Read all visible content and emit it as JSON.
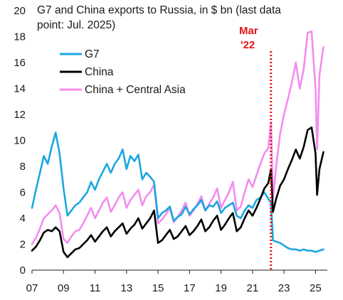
{
  "chart_data": {
    "type": "line",
    "title_lines": [
      "G7 and China exports to Russia, in $ bn (last data",
      "point: Jul. 2025)"
    ],
    "xlabel": "",
    "ylabel": "",
    "x_ticks": [
      "07",
      "09",
      "11",
      "13",
      "15",
      "17",
      "19",
      "21",
      "23",
      "25"
    ],
    "y_ticks": [
      "0",
      "2",
      "4",
      "6",
      "8",
      "10",
      "12",
      "14",
      "16",
      "18",
      "20"
    ],
    "xlim": [
      2007.0,
      2025.75
    ],
    "ylim": [
      0,
      20
    ],
    "grid": false,
    "legend_position": "upper-left",
    "annotation": {
      "lines": [
        "Mar",
        "'22"
      ],
      "x": 2022.17,
      "color": "#e3151a",
      "style": "dotted vertical line"
    },
    "series": [
      {
        "name": "G7",
        "color": "#1aa7e0",
        "points": [
          [
            2007.0,
            4.8
          ],
          [
            2007.25,
            6.2
          ],
          [
            2007.5,
            7.5
          ],
          [
            2007.75,
            8.8
          ],
          [
            2008.0,
            8.2
          ],
          [
            2008.25,
            9.5
          ],
          [
            2008.5,
            10.6
          ],
          [
            2008.75,
            9.0
          ],
          [
            2009.0,
            6.3
          ],
          [
            2009.25,
            4.2
          ],
          [
            2009.5,
            4.6
          ],
          [
            2009.75,
            5.0
          ],
          [
            2010.0,
            5.2
          ],
          [
            2010.25,
            5.6
          ],
          [
            2010.5,
            6.0
          ],
          [
            2010.75,
            6.8
          ],
          [
            2011.0,
            6.2
          ],
          [
            2011.25,
            7.0
          ],
          [
            2011.5,
            7.6
          ],
          [
            2011.75,
            8.2
          ],
          [
            2012.0,
            7.5
          ],
          [
            2012.25,
            8.2
          ],
          [
            2012.5,
            8.6
          ],
          [
            2012.75,
            9.3
          ],
          [
            2013.0,
            7.8
          ],
          [
            2013.25,
            8.8
          ],
          [
            2013.5,
            8.4
          ],
          [
            2013.75,
            8.9
          ],
          [
            2014.0,
            7.0
          ],
          [
            2014.25,
            7.5
          ],
          [
            2014.5,
            7.2
          ],
          [
            2014.75,
            6.8
          ],
          [
            2015.0,
            4.0
          ],
          [
            2015.25,
            4.4
          ],
          [
            2015.5,
            4.6
          ],
          [
            2015.75,
            4.9
          ],
          [
            2016.0,
            3.8
          ],
          [
            2016.25,
            4.1
          ],
          [
            2016.5,
            4.3
          ],
          [
            2016.75,
            4.9
          ],
          [
            2017.0,
            4.3
          ],
          [
            2017.25,
            4.7
          ],
          [
            2017.5,
            5.0
          ],
          [
            2017.75,
            5.4
          ],
          [
            2018.0,
            4.6
          ],
          [
            2018.25,
            5.0
          ],
          [
            2018.5,
            4.9
          ],
          [
            2018.75,
            5.3
          ],
          [
            2019.0,
            4.4
          ],
          [
            2019.25,
            4.8
          ],
          [
            2019.5,
            5.0
          ],
          [
            2019.75,
            5.2
          ],
          [
            2020.0,
            4.2
          ],
          [
            2020.25,
            4.0
          ],
          [
            2020.5,
            4.6
          ],
          [
            2020.75,
            5.0
          ],
          [
            2021.0,
            4.8
          ],
          [
            2021.25,
            5.4
          ],
          [
            2021.5,
            5.6
          ],
          [
            2021.75,
            6.0
          ],
          [
            2022.0,
            5.5
          ],
          [
            2022.17,
            5.2
          ],
          [
            2022.3,
            2.3
          ],
          [
            2022.5,
            2.2
          ],
          [
            2022.75,
            2.1
          ],
          [
            2023.0,
            1.9
          ],
          [
            2023.25,
            1.7
          ],
          [
            2023.5,
            1.6
          ],
          [
            2023.75,
            1.6
          ],
          [
            2024.0,
            1.5
          ],
          [
            2024.25,
            1.6
          ],
          [
            2024.5,
            1.5
          ],
          [
            2024.75,
            1.5
          ],
          [
            2025.0,
            1.4
          ],
          [
            2025.25,
            1.5
          ],
          [
            2025.5,
            1.6
          ]
        ]
      },
      {
        "name": "China",
        "color": "#000000",
        "points": [
          [
            2007.0,
            1.5
          ],
          [
            2007.25,
            1.8
          ],
          [
            2007.5,
            2.3
          ],
          [
            2007.75,
            2.9
          ],
          [
            2008.0,
            3.1
          ],
          [
            2008.25,
            3.0
          ],
          [
            2008.5,
            3.3
          ],
          [
            2008.75,
            3.0
          ],
          [
            2009.0,
            1.4
          ],
          [
            2009.25,
            1.0
          ],
          [
            2009.5,
            1.3
          ],
          [
            2009.75,
            1.6
          ],
          [
            2010.0,
            1.7
          ],
          [
            2010.25,
            2.0
          ],
          [
            2010.5,
            2.3
          ],
          [
            2010.75,
            2.7
          ],
          [
            2011.0,
            2.2
          ],
          [
            2011.25,
            2.6
          ],
          [
            2011.5,
            3.0
          ],
          [
            2011.75,
            3.3
          ],
          [
            2012.0,
            2.6
          ],
          [
            2012.25,
            3.0
          ],
          [
            2012.5,
            3.3
          ],
          [
            2012.75,
            3.6
          ],
          [
            2013.0,
            2.8
          ],
          [
            2013.25,
            3.2
          ],
          [
            2013.5,
            3.5
          ],
          [
            2013.75,
            4.0
          ],
          [
            2014.0,
            3.2
          ],
          [
            2014.25,
            3.6
          ],
          [
            2014.5,
            4.0
          ],
          [
            2014.75,
            4.6
          ],
          [
            2015.0,
            2.1
          ],
          [
            2015.25,
            2.3
          ],
          [
            2015.5,
            2.7
          ],
          [
            2015.75,
            3.1
          ],
          [
            2016.0,
            2.4
          ],
          [
            2016.25,
            2.6
          ],
          [
            2016.5,
            3.0
          ],
          [
            2016.75,
            3.4
          ],
          [
            2017.0,
            2.7
          ],
          [
            2017.25,
            3.0
          ],
          [
            2017.5,
            3.4
          ],
          [
            2017.75,
            3.9
          ],
          [
            2018.0,
            3.0
          ],
          [
            2018.25,
            3.3
          ],
          [
            2018.5,
            3.8
          ],
          [
            2018.75,
            4.2
          ],
          [
            2019.0,
            3.1
          ],
          [
            2019.25,
            3.5
          ],
          [
            2019.5,
            4.0
          ],
          [
            2019.75,
            4.4
          ],
          [
            2020.0,
            3.0
          ],
          [
            2020.25,
            3.3
          ],
          [
            2020.5,
            4.0
          ],
          [
            2020.75,
            4.6
          ],
          [
            2021.0,
            4.2
          ],
          [
            2021.25,
            4.8
          ],
          [
            2021.5,
            5.5
          ],
          [
            2021.75,
            6.3
          ],
          [
            2022.0,
            6.7
          ],
          [
            2022.17,
            7.8
          ],
          [
            2022.3,
            4.5
          ],
          [
            2022.5,
            5.5
          ],
          [
            2022.75,
            6.5
          ],
          [
            2023.0,
            7.0
          ],
          [
            2023.25,
            7.8
          ],
          [
            2023.5,
            8.5
          ],
          [
            2023.75,
            9.3
          ],
          [
            2024.0,
            8.6
          ],
          [
            2024.25,
            9.5
          ],
          [
            2024.5,
            10.8
          ],
          [
            2024.75,
            11.0
          ],
          [
            2025.0,
            9.0
          ],
          [
            2025.1,
            5.8
          ],
          [
            2025.25,
            7.8
          ],
          [
            2025.5,
            9.1
          ]
        ]
      },
      {
        "name": "China + Central Asia",
        "color": "#f48cf0",
        "points": [
          [
            2007.0,
            2.0
          ],
          [
            2007.25,
            2.5
          ],
          [
            2007.5,
            3.2
          ],
          [
            2007.75,
            4.0
          ],
          [
            2008.0,
            4.3
          ],
          [
            2008.25,
            4.6
          ],
          [
            2008.5,
            5.0
          ],
          [
            2008.75,
            4.4
          ],
          [
            2009.0,
            2.4
          ],
          [
            2009.25,
            2.1
          ],
          [
            2009.5,
            2.6
          ],
          [
            2009.75,
            3.0
          ],
          [
            2010.0,
            3.1
          ],
          [
            2010.25,
            3.6
          ],
          [
            2010.5,
            4.2
          ],
          [
            2010.75,
            4.8
          ],
          [
            2011.0,
            4.0
          ],
          [
            2011.25,
            4.6
          ],
          [
            2011.5,
            5.2
          ],
          [
            2011.75,
            5.6
          ],
          [
            2012.0,
            4.5
          ],
          [
            2012.25,
            5.0
          ],
          [
            2012.5,
            5.6
          ],
          [
            2012.75,
            6.0
          ],
          [
            2013.0,
            4.8
          ],
          [
            2013.25,
            5.4
          ],
          [
            2013.5,
            5.8
          ],
          [
            2013.75,
            6.2
          ],
          [
            2014.0,
            5.0
          ],
          [
            2014.25,
            5.7
          ],
          [
            2014.5,
            6.0
          ],
          [
            2014.75,
            6.6
          ],
          [
            2015.0,
            3.6
          ],
          [
            2015.25,
            3.9
          ],
          [
            2015.5,
            4.3
          ],
          [
            2015.75,
            4.8
          ],
          [
            2016.0,
            3.7
          ],
          [
            2016.25,
            4.1
          ],
          [
            2016.5,
            4.6
          ],
          [
            2016.75,
            5.2
          ],
          [
            2017.0,
            4.2
          ],
          [
            2017.25,
            4.6
          ],
          [
            2017.5,
            5.1
          ],
          [
            2017.75,
            5.7
          ],
          [
            2018.0,
            4.6
          ],
          [
            2018.25,
            5.1
          ],
          [
            2018.5,
            5.6
          ],
          [
            2018.75,
            6.3
          ],
          [
            2019.0,
            4.8
          ],
          [
            2019.25,
            5.4
          ],
          [
            2019.5,
            6.0
          ],
          [
            2019.75,
            6.8
          ],
          [
            2020.0,
            4.6
          ],
          [
            2020.25,
            4.9
          ],
          [
            2020.5,
            6.0
          ],
          [
            2020.75,
            7.0
          ],
          [
            2021.0,
            6.4
          ],
          [
            2021.25,
            7.3
          ],
          [
            2021.5,
            8.2
          ],
          [
            2021.75,
            9.0
          ],
          [
            2022.0,
            9.4
          ],
          [
            2022.17,
            11.4
          ],
          [
            2022.3,
            5.5
          ],
          [
            2022.5,
            8.0
          ],
          [
            2022.75,
            10.5
          ],
          [
            2023.0,
            12.0
          ],
          [
            2023.25,
            13.2
          ],
          [
            2023.5,
            14.5
          ],
          [
            2023.75,
            16.0
          ],
          [
            2024.0,
            14.0
          ],
          [
            2024.25,
            15.5
          ],
          [
            2024.5,
            18.3
          ],
          [
            2024.75,
            18.4
          ],
          [
            2025.0,
            14.0
          ],
          [
            2025.1,
            9.3
          ],
          [
            2025.25,
            15.0
          ],
          [
            2025.5,
            17.2
          ]
        ]
      }
    ]
  }
}
